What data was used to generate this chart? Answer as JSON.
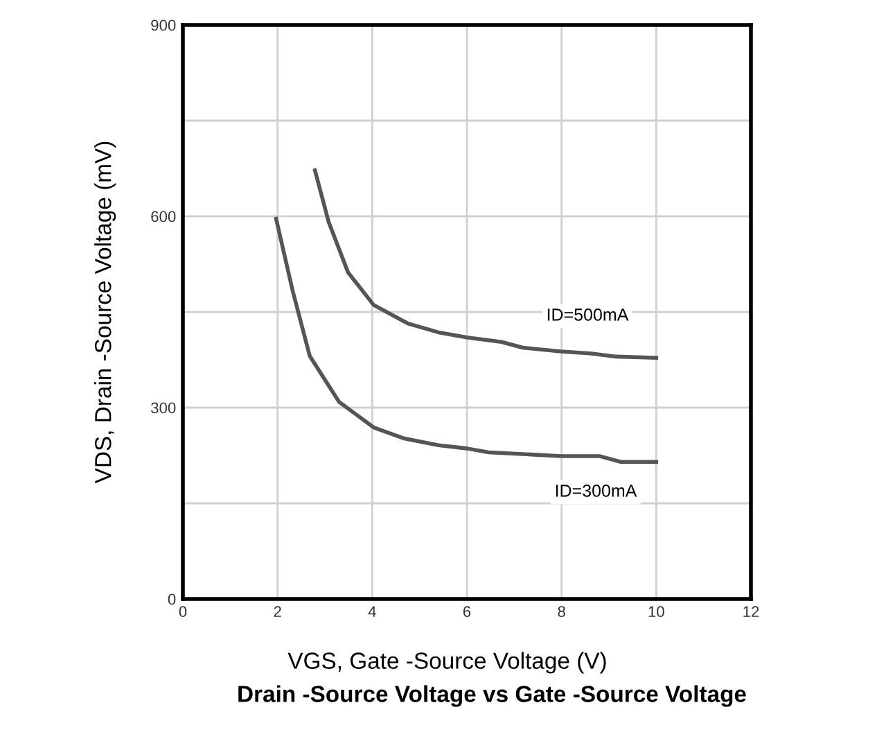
{
  "chart_data": {
    "type": "line",
    "title": "Drain -Source Voltage vs Gate -Source Voltage",
    "xlabel": "VGS, Gate -Source Voltage (V)",
    "ylabel": "VDS, Drain -Source Voltage (mV)",
    "series": [
      {
        "color": "#555555",
        "x": [
          2.79,
          3.08,
          3.49,
          4.03,
          4.75,
          5.4,
          6.0,
          6.73,
          7.18,
          7.99,
          8.6,
          9.16,
          10.0
        ],
        "values": [
          672,
          591,
          512,
          461,
          432,
          418,
          410,
          403,
          394,
          388,
          385,
          380,
          378
        ]
      },
      {
        "color": "#555555",
        "x": [
          1.97,
          2.32,
          2.68,
          3.3,
          4.03,
          4.66,
          5.4,
          6.0,
          6.46,
          7.99,
          8.8,
          9.25,
          10.0
        ],
        "values": [
          596,
          483,
          381,
          309,
          269,
          252,
          241,
          236,
          230,
          224,
          224,
          215,
          215
        ]
      }
    ],
    "annotations": [
      "ID=500mA",
      "ID=300mA"
    ],
    "xlim": [
      0,
      12
    ],
    "xticks": [
      0,
      2,
      4,
      6,
      8,
      10,
      12
    ],
    "ylim": [
      0,
      900
    ],
    "yticks": [
      0,
      {
        "value": 150,
        "label": null
      },
      300,
      {
        "value": 450,
        "label": null
      },
      600,
      {
        "value": 750,
        "label": null
      },
      900
    ],
    "grid": true,
    "line_style": "solid"
  }
}
